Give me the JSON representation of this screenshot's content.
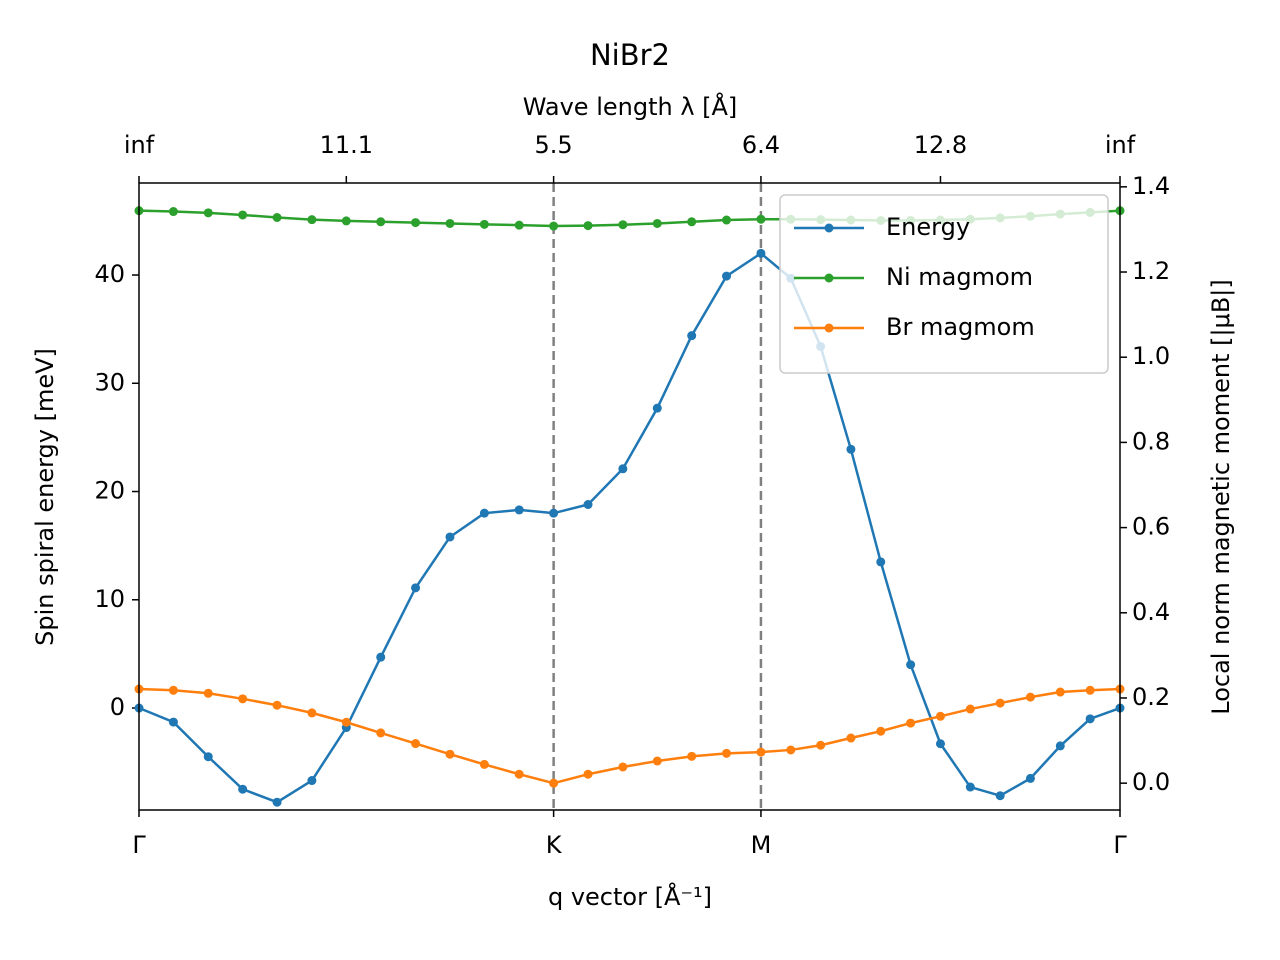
{
  "chart_data": {
    "type": "line",
    "title": "NiBr2",
    "x2label": "Wave length λ [Å]",
    "xlabel": "q vector [Å⁻¹]",
    "ylabel": "Spin spiral energy [meV]",
    "y2label": "Local norm magnetic moment [|μB|]",
    "x": [
      0,
      0.083,
      0.167,
      0.25,
      0.333,
      0.417,
      0.5,
      0.583,
      0.667,
      0.75,
      0.833,
      0.917,
      1,
      1.083,
      1.167,
      1.25,
      1.333,
      1.417,
      1.5,
      1.572,
      1.644,
      1.717,
      1.789,
      1.861,
      1.933,
      2.005,
      2.077,
      2.15,
      2.222,
      2.294,
      2.366
    ],
    "xlim": [
      0,
      2.366
    ],
    "xticks": [
      {
        "value": 0,
        "label": "Γ"
      },
      {
        "value": 1,
        "label": "K"
      },
      {
        "value": 1.5,
        "label": "M"
      },
      {
        "value": 2.366,
        "label": "Γ"
      }
    ],
    "x2ticks": [
      {
        "value": 0,
        "label": "inf"
      },
      {
        "value": 0.5,
        "label": "11.1"
      },
      {
        "value": 1,
        "label": "5.5"
      },
      {
        "value": 1.5,
        "label": "6.4"
      },
      {
        "value": 1.933,
        "label": "12.8"
      },
      {
        "value": 2.366,
        "label": "inf"
      }
    ],
    "vlines": [
      1,
      1.5
    ],
    "vline_color": "#808080",
    "ylim": [
      -9.42,
      48.5
    ],
    "yticks": [
      0,
      10,
      20,
      30,
      40
    ],
    "y2lim": [
      -0.063,
      1.409
    ],
    "y2ticks": [
      {
        "value": 0,
        "label": "0.0"
      },
      0.2,
      0.4,
      0.6,
      0.8,
      {
        "value": 1,
        "label": "1.0"
      },
      1.2,
      1.4
    ],
    "legend": "upper right",
    "series": [
      {
        "name": "Energy",
        "color": "#1f77b4",
        "values": [
          0,
          -1.3,
          -4.5,
          -7.5,
          -8.7,
          -6.7,
          -1.8,
          4.7,
          11.1,
          15.8,
          18,
          18.3,
          18,
          18.8,
          22.1,
          27.7,
          34.4,
          39.9,
          42,
          39.7,
          33.4,
          23.9,
          13.5,
          4,
          -3.3,
          -7.3,
          -8.1,
          -6.5,
          -3.5,
          -1,
          0
        ]
      },
      {
        "name": "Ni magmom",
        "color": "#2ca02c",
        "axis": "y2",
        "values": [
          1.344,
          1.342,
          1.339,
          1.334,
          1.328,
          1.323,
          1.32,
          1.318,
          1.316,
          1.314,
          1.312,
          1.31,
          1.308,
          1.309,
          1.311,
          1.314,
          1.318,
          1.322,
          1.324,
          1.324,
          1.323,
          1.322,
          1.321,
          1.321,
          1.322,
          1.324,
          1.327,
          1.331,
          1.336,
          1.34,
          1.344
        ]
      },
      {
        "name": "Br magmom",
        "color": "#ff7f0e",
        "axis": "y2",
        "values": [
          0.221,
          0.218,
          0.211,
          0.198,
          0.183,
          0.165,
          0.143,
          0.118,
          0.093,
          0.068,
          0.044,
          0.021,
          0,
          0.021,
          0.038,
          0.052,
          0.063,
          0.07,
          0.073,
          0.078,
          0.089,
          0.106,
          0.122,
          0.141,
          0.157,
          0.174,
          0.188,
          0.202,
          0.214,
          0.218,
          0.221
        ]
      }
    ]
  }
}
